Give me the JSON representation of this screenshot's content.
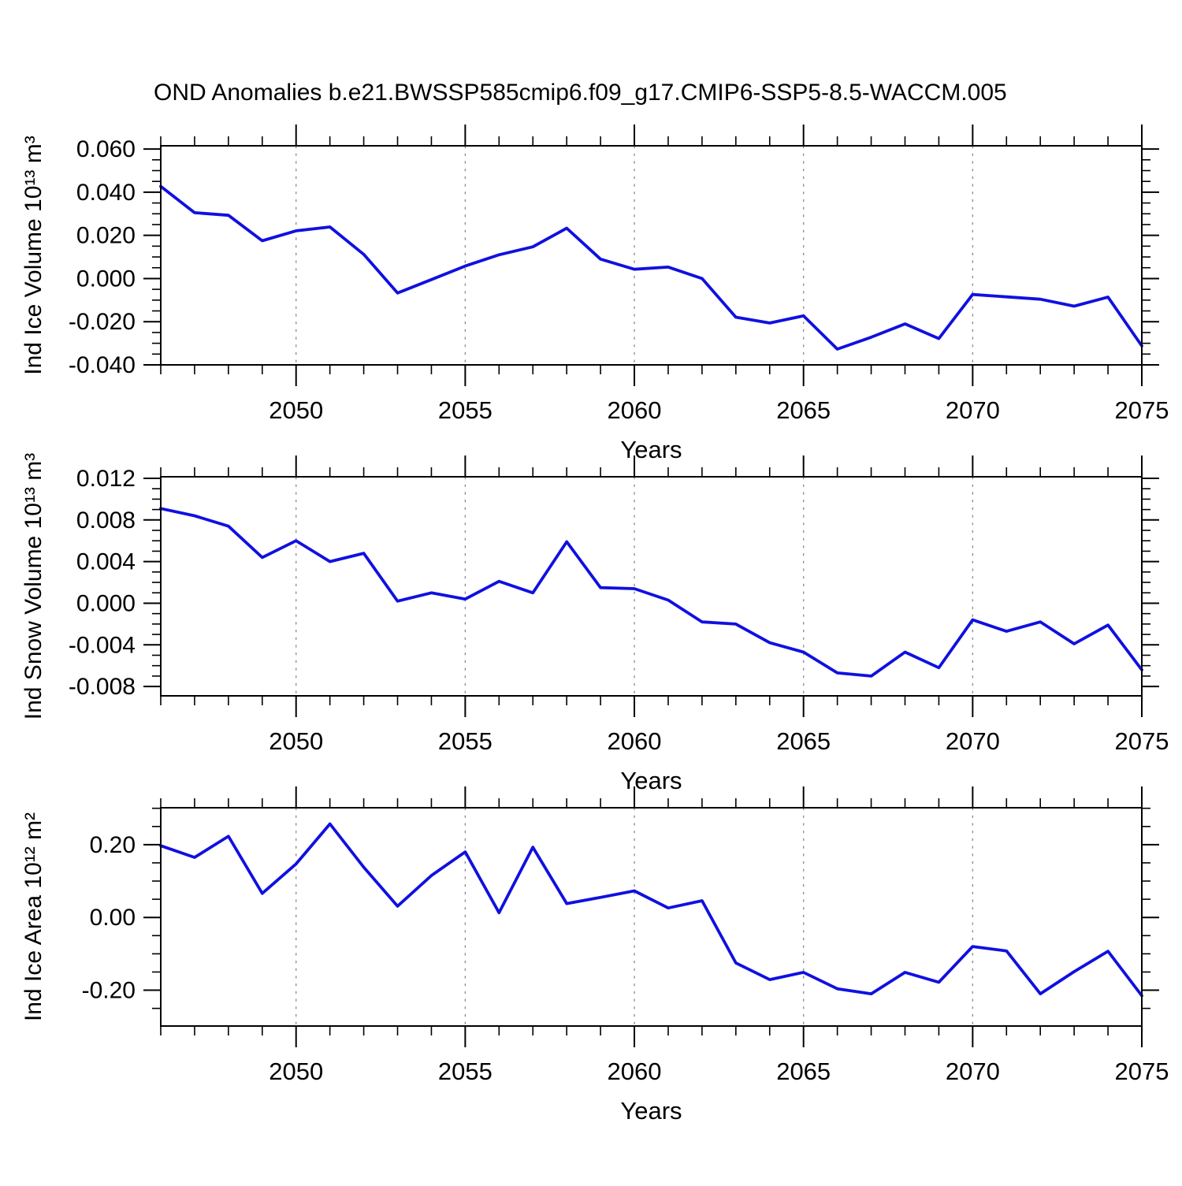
{
  "title": "OND Anomalies b.e21.BWSSP585cmip6.f09_g17.CMIP6-SSP5-8.5-WACCM.005",
  "line_color": "#1010e0",
  "grid_color": "#8a8a8a",
  "frame_color": "#000000",
  "chart_data": [
    {
      "id": "ice-volume",
      "type": "line",
      "ylabel": "Ind Ice Volume 10¹³ m³",
      "xlabel": "Years",
      "x": [
        2046,
        2047,
        2048,
        2049,
        2050,
        2051,
        2052,
        2053,
        2054,
        2055,
        2056,
        2057,
        2058,
        2059,
        2060,
        2061,
        2062,
        2063,
        2064,
        2065,
        2066,
        2067,
        2068,
        2069,
        2070,
        2071,
        2072,
        2073,
        2074,
        2075
      ],
      "values": [
        0.0427,
        0.0305,
        0.0293,
        0.0175,
        0.0221,
        0.0239,
        0.0112,
        -0.0067,
        -0.0005,
        0.0058,
        0.011,
        0.0147,
        0.0233,
        0.009,
        0.0043,
        0.0053,
        0.0,
        -0.0179,
        -0.0206,
        -0.0173,
        -0.0327,
        -0.0272,
        -0.021,
        -0.0278,
        -0.0074,
        -0.0085,
        -0.0096,
        -0.0128,
        -0.0086,
        -0.0312
      ],
      "xlim": [
        2046,
        2075
      ],
      "ylim": [
        -0.04,
        0.0615
      ],
      "yticks": [
        0.06,
        0.04,
        0.02,
        0.0,
        -0.02,
        -0.04
      ],
      "ytick_labels": [
        "0.060",
        "0.040",
        "0.020",
        "0.000",
        "-0.020",
        "-0.040"
      ],
      "y_minor_step": 0.005,
      "xticks": [
        2050,
        2055,
        2060,
        2065,
        2070,
        2075
      ],
      "xtick_labels": [
        "2050",
        "2055",
        "2060",
        "2065",
        "2070",
        "2075"
      ],
      "grid_years": [
        2050,
        2055,
        2060,
        2065,
        2070
      ],
      "grid": "vertical-dashed",
      "legend": "none"
    },
    {
      "id": "snow-volume",
      "type": "line",
      "ylabel": "Ind Snow Volume 10¹³ m³",
      "xlabel": "Years",
      "x": [
        2046,
        2047,
        2048,
        2049,
        2050,
        2051,
        2052,
        2053,
        2054,
        2055,
        2056,
        2057,
        2058,
        2059,
        2060,
        2061,
        2062,
        2063,
        2064,
        2065,
        2066,
        2067,
        2068,
        2069,
        2070,
        2071,
        2072,
        2073,
        2074,
        2075
      ],
      "values": [
        0.0091,
        0.0084,
        0.0074,
        0.0044,
        0.006,
        0.004,
        0.0048,
        0.0002,
        0.001,
        0.0004,
        0.0021,
        0.001,
        0.0059,
        0.0015,
        0.0014,
        0.0003,
        -0.0018,
        -0.002,
        -0.0038,
        -0.0047,
        -0.0067,
        -0.007,
        -0.0047,
        -0.0062,
        -0.0016,
        -0.0027,
        -0.0018,
        -0.0039,
        -0.0021,
        -0.0064
      ],
      "xlim": [
        2046,
        2075
      ],
      "ylim": [
        -0.0089,
        0.01215
      ],
      "yticks": [
        0.012,
        0.008,
        0.004,
        0.0,
        -0.004,
        -0.008
      ],
      "ytick_labels": [
        "0.012",
        "0.008",
        "0.004",
        "0.000",
        "-0.004",
        "-0.008"
      ],
      "y_minor_step": 0.001,
      "xticks": [
        2050,
        2055,
        2060,
        2065,
        2070,
        2075
      ],
      "xtick_labels": [
        "2050",
        "2055",
        "2060",
        "2065",
        "2070",
        "2075"
      ],
      "grid_years": [
        2050,
        2055,
        2060,
        2065,
        2070
      ],
      "grid": "vertical-dashed",
      "legend": "none"
    },
    {
      "id": "ice-area",
      "type": "line",
      "ylabel": "Ind Ice Area 10¹² m²",
      "xlabel": "Years",
      "x": [
        2046,
        2047,
        2048,
        2049,
        2050,
        2051,
        2052,
        2053,
        2054,
        2055,
        2056,
        2057,
        2058,
        2059,
        2060,
        2061,
        2062,
        2063,
        2064,
        2065,
        2066,
        2067,
        2068,
        2069,
        2070,
        2071,
        2072,
        2073,
        2074,
        2075
      ],
      "values": [
        0.197,
        0.165,
        0.223,
        0.066,
        0.147,
        0.257,
        0.138,
        0.031,
        0.115,
        0.18,
        0.013,
        0.193,
        0.038,
        0.055,
        0.073,
        0.026,
        0.046,
        -0.125,
        -0.171,
        -0.151,
        -0.196,
        -0.21,
        -0.151,
        -0.178,
        -0.08,
        -0.092,
        -0.21,
        -0.149,
        -0.093,
        -0.215
      ],
      "xlim": [
        2046,
        2075
      ],
      "ylim": [
        -0.2985,
        0.3015
      ],
      "yticks": [
        0.2,
        0.0,
        -0.2
      ],
      "ytick_labels": [
        "0.20",
        "0.00",
        "-0.20"
      ],
      "y_minor_step": 0.05,
      "xticks": [
        2050,
        2055,
        2060,
        2065,
        2070,
        2075
      ],
      "xtick_labels": [
        "2050",
        "2055",
        "2060",
        "2065",
        "2070",
        "2075"
      ],
      "grid_years": [
        2050,
        2055,
        2060,
        2065,
        2070
      ],
      "grid": "vertical-dashed",
      "legend": "none"
    }
  ]
}
